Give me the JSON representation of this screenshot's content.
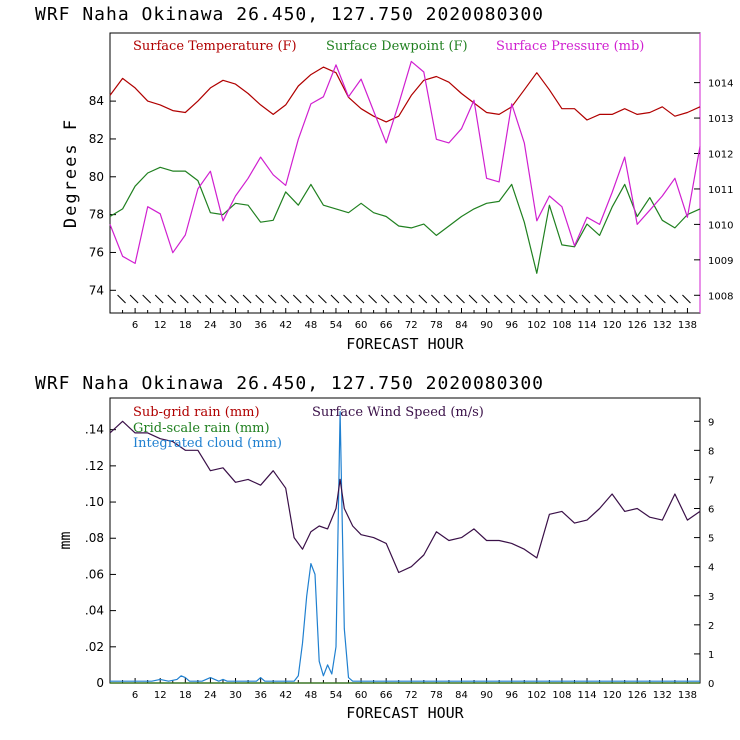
{
  "chart_data": [
    {
      "type": "line",
      "title": "WRF   Naha Okinawa   26.450, 127.750   2020080300",
      "xlabel": "FORECAST HOUR",
      "ylabel": "Degrees F",
      "x_ticks": [
        "6",
        "12",
        "18",
        "24",
        "30",
        "36",
        "42",
        "48",
        "54",
        "60",
        "66",
        "72",
        "78",
        "84",
        "90",
        "96",
        "102",
        "108",
        "114",
        "120",
        "126",
        "132",
        "138"
      ],
      "xlim": [
        0,
        141
      ],
      "y_ticks": [
        "74",
        "76",
        "78",
        "80",
        "82",
        "84"
      ],
      "ylim": [
        72.8,
        87.6
      ],
      "y2_ticks": [
        "1008",
        "1009",
        "1010",
        "1011",
        "1012",
        "1013",
        "1014"
      ],
      "y2lim": [
        1007.5,
        1015.4
      ],
      "wind_barbs": true,
      "series": [
        {
          "name": "Surface Temperature (F)",
          "color": "#b00000",
          "axis": "left",
          "x": [
            0,
            3,
            6,
            9,
            12,
            15,
            18,
            21,
            24,
            27,
            30,
            33,
            36,
            39,
            42,
            45,
            48,
            51,
            54,
            57,
            60,
            63,
            66,
            69,
            72,
            75,
            78,
            81,
            84,
            87,
            90,
            93,
            96,
            99,
            102,
            105,
            108,
            111,
            114,
            117,
            120,
            123,
            126,
            129,
            132,
            135,
            138,
            141
          ],
          "y": [
            84.3,
            85.2,
            84.7,
            84.0,
            83.8,
            83.5,
            83.4,
            84.0,
            84.7,
            85.1,
            84.9,
            84.4,
            83.8,
            83.3,
            83.8,
            84.8,
            85.4,
            85.8,
            85.5,
            84.2,
            83.6,
            83.2,
            82.9,
            83.2,
            84.3,
            85.1,
            85.3,
            85.0,
            84.4,
            83.9,
            83.4,
            83.3,
            83.7,
            84.6,
            85.5,
            84.6,
            83.6,
            83.6,
            83.0,
            83.3,
            83.3,
            83.6,
            83.3,
            83.4,
            83.7,
            83.2,
            83.4,
            83.7
          ]
        },
        {
          "name": "Surface Dewpoint (F)",
          "color": "#208020",
          "axis": "left",
          "x": [
            0,
            3,
            6,
            9,
            12,
            15,
            18,
            21,
            24,
            27,
            30,
            33,
            36,
            39,
            42,
            45,
            48,
            51,
            54,
            57,
            60,
            63,
            66,
            69,
            72,
            75,
            78,
            81,
            84,
            87,
            90,
            93,
            96,
            99,
            102,
            105,
            108,
            111,
            114,
            117,
            120,
            123,
            126,
            129,
            132,
            135,
            138,
            141
          ],
          "y": [
            77.9,
            78.3,
            79.5,
            80.2,
            80.5,
            80.3,
            80.3,
            79.8,
            78.1,
            78.0,
            78.6,
            78.5,
            77.6,
            77.7,
            79.2,
            78.5,
            79.6,
            78.5,
            78.3,
            78.1,
            78.6,
            78.1,
            77.9,
            77.4,
            77.3,
            77.5,
            76.9,
            77.4,
            77.9,
            78.3,
            78.6,
            78.7,
            79.6,
            77.6,
            74.9,
            78.5,
            76.4,
            76.3,
            77.5,
            76.9,
            78.4,
            79.6,
            77.9,
            78.9,
            77.7,
            77.3,
            78.0,
            78.3
          ]
        },
        {
          "name": "Surface Pressure (mb)",
          "color": "#d020d0",
          "axis": "right",
          "x": [
            0,
            3,
            6,
            9,
            12,
            15,
            18,
            21,
            24,
            27,
            30,
            33,
            36,
            39,
            42,
            45,
            48,
            51,
            54,
            57,
            60,
            63,
            66,
            69,
            72,
            75,
            78,
            81,
            84,
            87,
            90,
            93,
            96,
            99,
            102,
            105,
            108,
            111,
            114,
            117,
            120,
            123,
            126,
            129,
            132,
            135,
            138,
            141
          ],
          "y": [
            1010.0,
            1009.1,
            1008.9,
            1010.5,
            1010.3,
            1009.2,
            1009.7,
            1011.0,
            1011.5,
            1010.1,
            1010.8,
            1011.3,
            1011.9,
            1011.4,
            1011.1,
            1012.4,
            1013.4,
            1013.6,
            1014.5,
            1013.6,
            1014.1,
            1013.2,
            1012.3,
            1013.4,
            1014.6,
            1014.3,
            1012.4,
            1012.3,
            1012.7,
            1013.5,
            1011.3,
            1011.2,
            1013.4,
            1012.3,
            1010.1,
            1010.8,
            1010.5,
            1009.4,
            1010.2,
            1010.0,
            1010.9,
            1011.9,
            1010.0,
            1010.4,
            1010.8,
            1011.3,
            1010.2,
            1012.2
          ]
        }
      ]
    },
    {
      "type": "line",
      "title": "WRF   Naha Okinawa   26.450, 127.750   2020080300",
      "xlabel": "FORECAST HOUR",
      "ylabel": "mm",
      "x_ticks": [
        "6",
        "12",
        "18",
        "24",
        "30",
        "36",
        "42",
        "48",
        "54",
        "60",
        "66",
        "72",
        "78",
        "84",
        "90",
        "96",
        "102",
        "108",
        "114",
        "120",
        "126",
        "132",
        "138"
      ],
      "xlim": [
        0,
        141
      ],
      "y_ticks": [
        "0",
        ".02",
        ".04",
        ".06",
        ".08",
        ".10",
        ".12",
        ".14"
      ],
      "ylim": [
        0,
        0.1575
      ],
      "y2_ticks": [
        "0",
        "1",
        "2",
        "3",
        "4",
        "5",
        "6",
        "7",
        "8",
        "9"
      ],
      "y2lim": [
        0,
        9.8
      ],
      "series": [
        {
          "name": "Sub-grid rain (mm)",
          "color": "#b00000",
          "axis": "left",
          "x": [
            0,
            141
          ],
          "y": [
            0,
            0
          ]
        },
        {
          "name": "Grid-scale rain (mm)",
          "color": "#208020",
          "axis": "left",
          "x": [
            0,
            141
          ],
          "y": [
            0,
            0
          ]
        },
        {
          "name": "Integrated cloud (mm)",
          "color": "#2080d0",
          "axis": "left",
          "x": [
            0,
            10,
            12,
            14,
            16,
            17,
            18,
            19,
            20,
            22,
            24,
            26,
            27,
            28,
            30,
            35,
            36,
            37,
            38,
            40,
            44,
            45,
            46,
            47,
            48,
            49,
            50,
            51,
            52,
            53,
            54,
            55,
            56,
            57,
            58,
            141
          ],
          "y": [
            0.001,
            0.001,
            0.002,
            0.001,
            0.002,
            0.004,
            0.003,
            0.001,
            0.001,
            0.001,
            0.003,
            0.001,
            0.002,
            0.001,
            0.001,
            0.001,
            0.003,
            0.001,
            0.001,
            0.001,
            0.001,
            0.004,
            0.022,
            0.048,
            0.066,
            0.06,
            0.012,
            0.004,
            0.01,
            0.005,
            0.02,
            0.15,
            0.03,
            0.003,
            0.001,
            0.001
          ]
        },
        {
          "name": "Surface Wind Speed (m/s)",
          "color": "#3a1048",
          "axis": "right",
          "x": [
            0,
            3,
            6,
            9,
            12,
            15,
            18,
            21,
            24,
            27,
            30,
            33,
            36,
            39,
            42,
            44,
            46,
            48,
            50,
            52,
            54,
            55,
            56,
            58,
            60,
            63,
            66,
            69,
            72,
            75,
            78,
            81,
            84,
            87,
            90,
            93,
            96,
            99,
            102,
            105,
            108,
            111,
            114,
            117,
            120,
            123,
            126,
            129,
            132,
            135,
            138,
            141
          ],
          "y": [
            8.6,
            9.0,
            8.6,
            8.6,
            8.4,
            8.3,
            8.0,
            8.0,
            7.3,
            7.4,
            6.9,
            7.0,
            6.8,
            7.3,
            6.7,
            5.0,
            4.6,
            5.2,
            5.4,
            5.3,
            6.0,
            7.0,
            6.0,
            5.4,
            5.1,
            5.0,
            4.8,
            3.8,
            4.0,
            4.4,
            5.2,
            4.9,
            5.0,
            5.3,
            4.9,
            4.9,
            4.8,
            4.6,
            4.3,
            5.8,
            5.9,
            5.5,
            5.6,
            6.0,
            6.5,
            5.9,
            6.0,
            5.7,
            5.6,
            6.5,
            5.6,
            5.9
          ]
        }
      ]
    }
  ]
}
